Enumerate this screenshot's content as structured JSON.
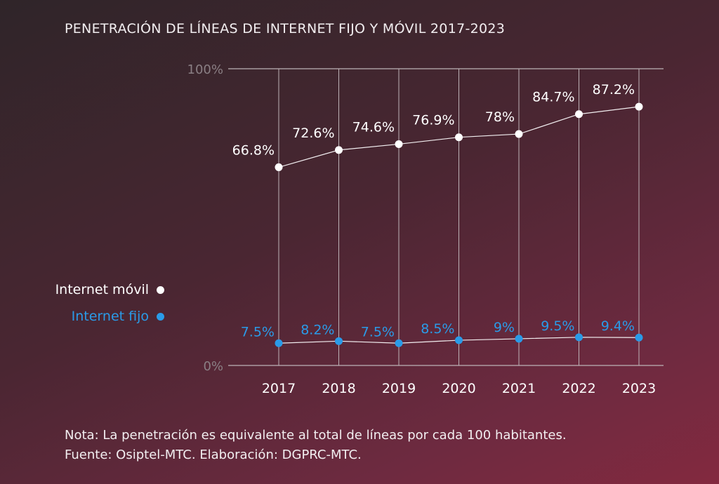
{
  "chart_data": {
    "type": "line",
    "title": "PENETRACIÓN DE LÍNEAS DE INTERNET FIJO Y MÓVIL 2017-2023",
    "categories": [
      "2017",
      "2018",
      "2019",
      "2020",
      "2021",
      "2022",
      "2023"
    ],
    "ylim": [
      0,
      100
    ],
    "y_ticks": [
      "0%",
      "100%"
    ],
    "grid": "vertical",
    "legend_position": "left",
    "series": [
      {
        "name": "Internet móvil",
        "values": [
          66.8,
          72.6,
          74.6,
          76.9,
          78,
          84.7,
          87.2
        ],
        "labels": [
          "66.8%",
          "72.6%",
          "74.6%",
          "76.9%",
          "78%",
          "84.7%",
          "87.2%"
        ],
        "color": "#ffffff"
      },
      {
        "name": "Internet fijo",
        "values": [
          7.5,
          8.2,
          7.5,
          8.5,
          9,
          9.5,
          9.4
        ],
        "labels": [
          "7.5%",
          "8.2%",
          "7.5%",
          "8.5%",
          "9%",
          "9.5%",
          "9.4%"
        ],
        "color": "#2a9be8"
      }
    ]
  },
  "notes": {
    "line1": "Nota: La penetración es equivalente al total de líneas por cada 100 habitantes.",
    "line2": "Fuente: Osiptel-MTC. Elaboración: DGPRC-MTC."
  },
  "colors": {
    "grid": "#bdb3b7",
    "axis_label": "#8a7f84"
  }
}
